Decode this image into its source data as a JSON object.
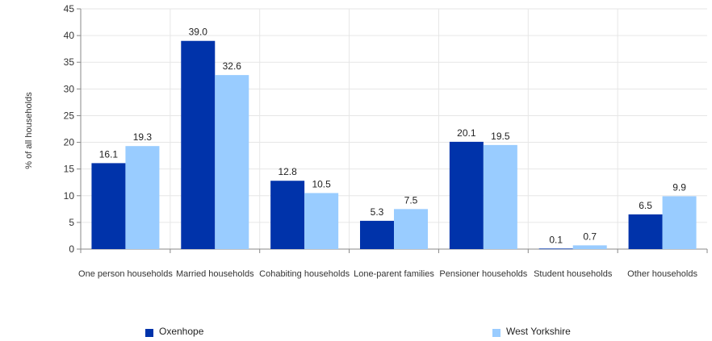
{
  "chart_data": {
    "type": "bar",
    "title": "",
    "xlabel": "",
    "ylabel": "% of all households",
    "ylim": [
      0,
      45
    ],
    "yticks": [
      0,
      5,
      10,
      15,
      20,
      25,
      30,
      35,
      40,
      45
    ],
    "grid": true,
    "legend_position": "bottom",
    "categories": [
      "One person households",
      "Married households",
      "Cohabiting households",
      "Lone-parent families",
      "Pensioner households",
      "Student households",
      "Other households"
    ],
    "series": [
      {
        "name": "Oxenhope",
        "color": "#0033aa",
        "values": [
          16.1,
          39.0,
          12.8,
          5.3,
          20.1,
          0.1,
          6.5
        ],
        "labels": [
          "16.1",
          "39.0",
          "12.8",
          "5.3",
          "20.1",
          "0.1",
          "6.5"
        ]
      },
      {
        "name": "West Yorkshire",
        "color": "#99ccff",
        "values": [
          19.3,
          32.6,
          10.5,
          7.5,
          19.5,
          0.7,
          9.9
        ],
        "labels": [
          "19.3",
          "32.6",
          "10.5",
          "7.5",
          "19.5",
          "0.7",
          "9.9"
        ]
      }
    ]
  }
}
